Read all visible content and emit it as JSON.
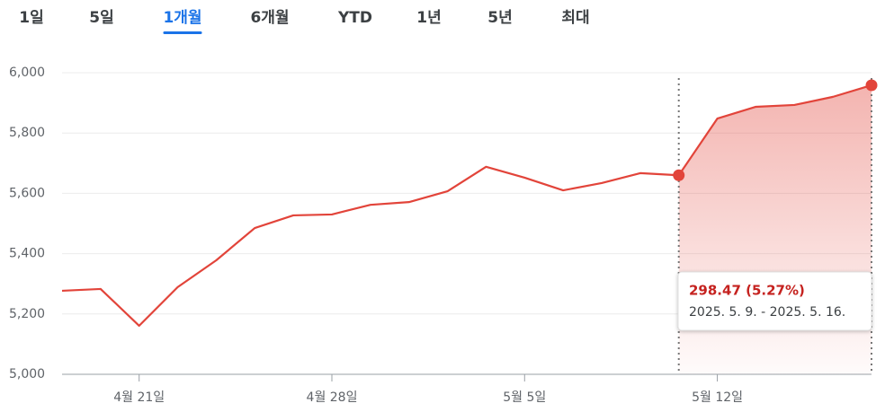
{
  "tabs": {
    "items": [
      "1일",
      "5일",
      "1개월",
      "6개월",
      "YTD",
      "1년",
      "5년",
      "최대"
    ],
    "selected": 2
  },
  "chart_data": {
    "type": "line",
    "categories": [
      null,
      null,
      "4월 21일",
      null,
      null,
      null,
      null,
      "4월 28일",
      null,
      null,
      null,
      null,
      "5월 5일",
      null,
      null,
      null,
      null,
      "5월 12일",
      null,
      null,
      null,
      null
    ],
    "values": [
      5277,
      5283,
      5161,
      5289,
      5378,
      5485,
      5527,
      5530,
      5562,
      5571,
      5607,
      5688,
      5652,
      5610,
      5634,
      5667,
      5659.91,
      5848,
      5887,
      5893,
      5920,
      5958.38
    ],
    "color": "#e2443a",
    "ylim": [
      5000,
      6000
    ],
    "yticks": [
      {
        "value": 5000,
        "label": "5,000"
      },
      {
        "value": 5200,
        "label": "5,200"
      },
      {
        "value": 5400,
        "label": "5,400"
      },
      {
        "value": 5600,
        "label": "5,600"
      },
      {
        "value": 5800,
        "label": "5,800"
      },
      {
        "value": 6000,
        "label": "6,000"
      }
    ],
    "grid": true,
    "selection": {
      "start": 16,
      "end": 21,
      "change_label": "298.47 (5.27%)",
      "range_label": "2025. 5. 9. - 2025. 5. 16."
    }
  }
}
